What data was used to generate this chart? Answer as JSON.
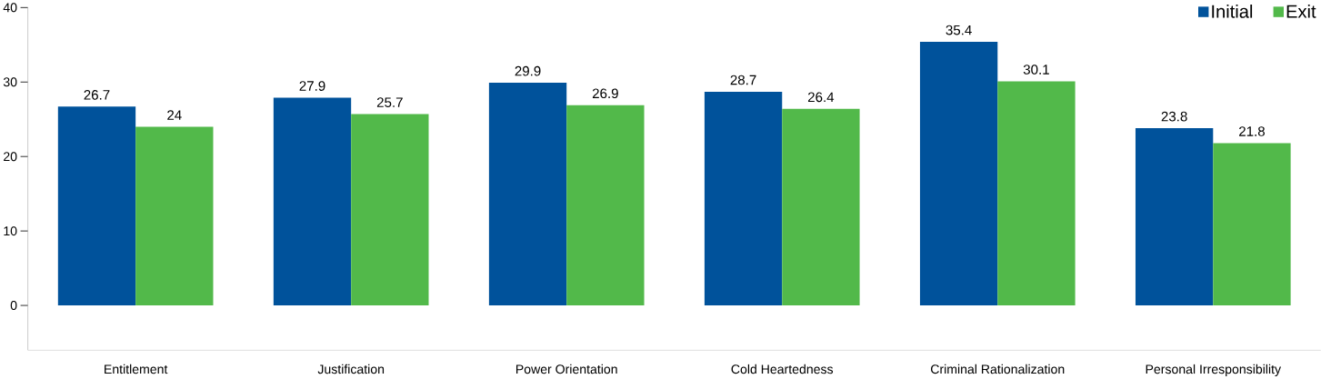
{
  "chart_data": {
    "type": "bar",
    "categories": [
      "Entitlement",
      "Justification",
      "Power Orientation",
      "Cold Heartedness",
      "Criminal Rationalization",
      "Personal Irresponsibility"
    ],
    "series": [
      {
        "name": "Initial",
        "color": "#00529b",
        "values": [
          26.7,
          27.9,
          29.9,
          28.7,
          35.4,
          23.8
        ]
      },
      {
        "name": "Exit",
        "color": "#52b94a",
        "values": [
          24,
          25.7,
          26.9,
          26.4,
          30.1,
          21.8
        ]
      }
    ],
    "ylim": [
      -6,
      40
    ],
    "yticks": [
      0,
      10,
      20,
      30,
      40
    ],
    "data_labels": true,
    "legend": "top right",
    "grid": false
  }
}
